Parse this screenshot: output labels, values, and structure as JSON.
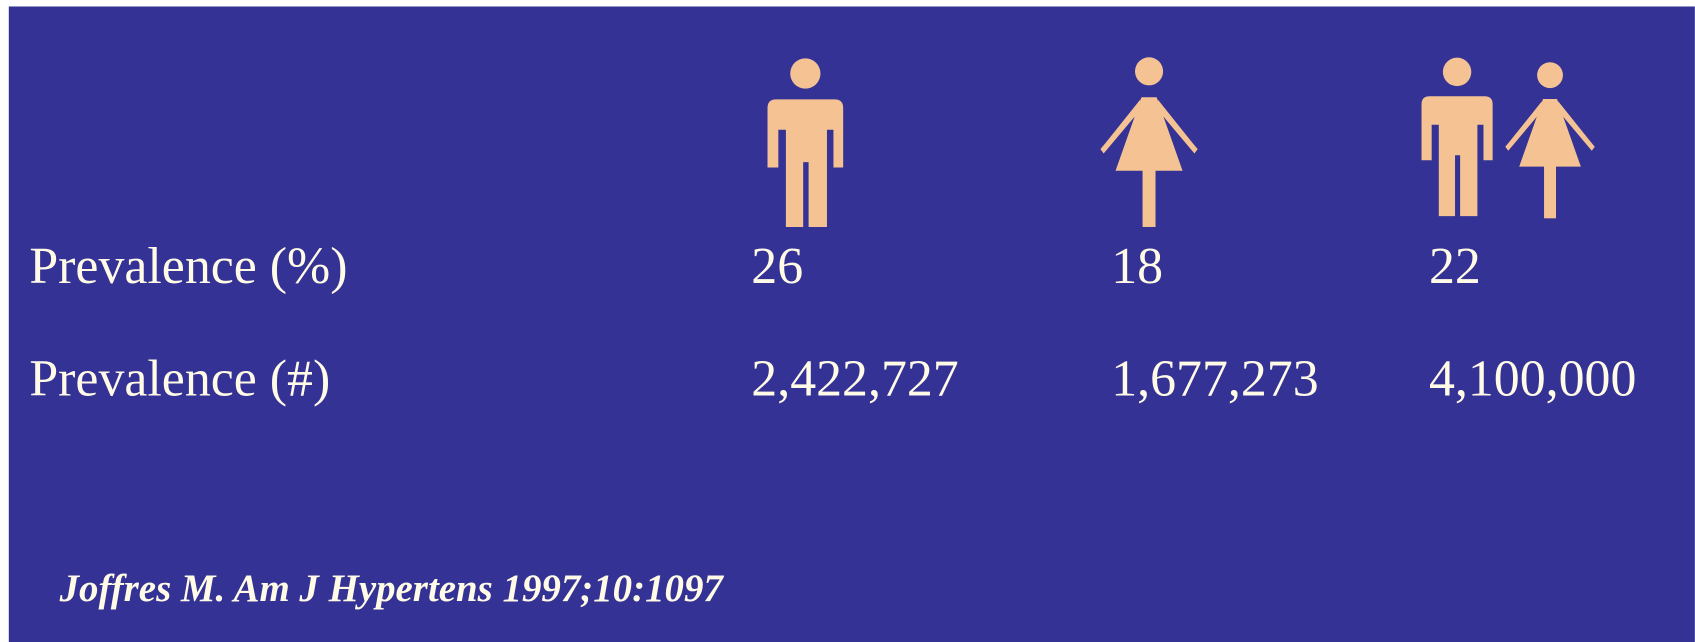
{
  "table": {
    "rows": [
      {
        "label": "Prevalence (%)",
        "values": [
          "26",
          "18",
          "22"
        ]
      },
      {
        "label": "Prevalence (#)",
        "values": [
          "2,422,727",
          "1,677,273",
          "4,100,000"
        ]
      }
    ]
  },
  "citation": "Joffres M. Am J Hypertens 1997;10:1097"
}
